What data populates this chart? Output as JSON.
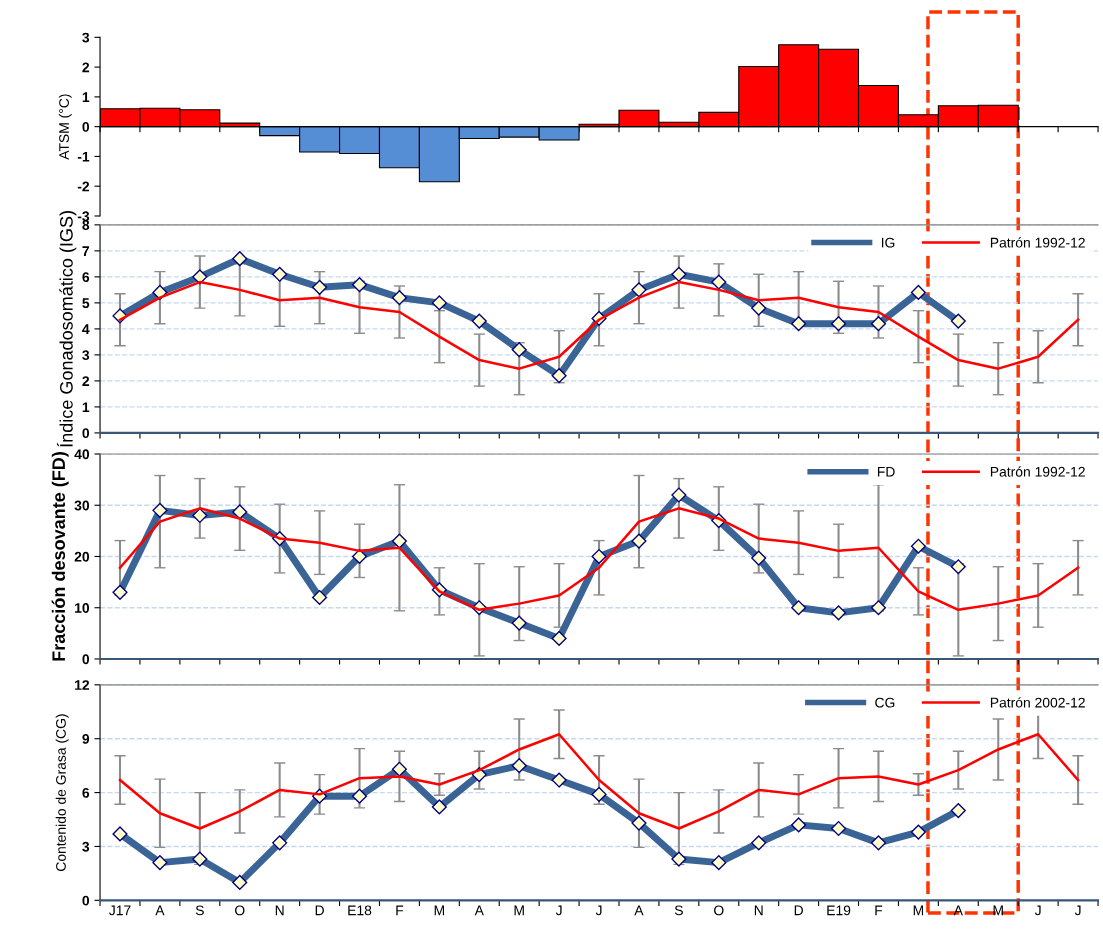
{
  "chart_data": [
    {
      "type": "bar",
      "ylabel": "ATSM (°C)",
      "categories": [
        null,
        null,
        null,
        null,
        null,
        null,
        null,
        null,
        null,
        null,
        null,
        null,
        null,
        null,
        null,
        null,
        null,
        null,
        null,
        null,
        null,
        null,
        null,
        null,
        null
      ],
      "values": [
        0.6,
        0.62,
        0.57,
        0.12,
        -0.3,
        -0.85,
        -0.9,
        -1.38,
        -1.85,
        -0.4,
        -0.35,
        -0.45,
        0.08,
        0.55,
        0.15,
        0.48,
        2.02,
        2.75,
        2.6,
        1.38,
        0.4,
        0.7,
        0.72,
        null,
        null
      ],
      "colors": [
        "#ff0000",
        "#ff0000",
        "#ff0000",
        "#ff0000",
        "#558ed5",
        "#558ed5",
        "#558ed5",
        "#558ed5",
        "#558ed5",
        "#558ed5",
        "#558ed5",
        "#558ed5",
        "#ff0000",
        "#ff0000",
        "#ff0000",
        "#ff0000",
        "#ff0000",
        "#ff0000",
        "#ff0000",
        "#ff0000",
        "#ff0000",
        "#ff0000",
        "#ff0000",
        "#ff0000",
        "#ff0000"
      ],
      "ylim": [
        -3,
        3
      ],
      "yticks": [
        -3,
        -2,
        -1,
        0,
        1,
        2,
        3
      ],
      "tick_labels": "y"
    },
    {
      "type": "line",
      "ylabel": "Índice Gonadosomático (IGS)",
      "categories": [
        null,
        null,
        null,
        null,
        null,
        null,
        null,
        null,
        null,
        null,
        null,
        null,
        null,
        null,
        null,
        null,
        null,
        null,
        null,
        null,
        null,
        null,
        null,
        null,
        null
      ],
      "series": [
        {
          "name": "IG",
          "color": "#3b6496",
          "marker": "diamond",
          "values": [
            4.5,
            5.4,
            6.0,
            6.7,
            6.1,
            5.6,
            5.7,
            5.2,
            5.0,
            4.3,
            3.2,
            2.2,
            4.4,
            5.5,
            6.1,
            5.8,
            4.8,
            4.2,
            4.2,
            4.2,
            5.4,
            4.3,
            null,
            null,
            null
          ]
        },
        {
          "name": "Patrón 1992-12",
          "color": "#ff0000",
          "marker": "none",
          "values": [
            4.35,
            5.2,
            5.8,
            5.5,
            5.1,
            5.2,
            4.83,
            4.65,
            3.7,
            2.8,
            2.47,
            2.93,
            4.35,
            5.2,
            5.8,
            5.5,
            5.1,
            5.2,
            4.83,
            4.65,
            3.7,
            2.8,
            2.47,
            2.93,
            4.35
          ],
          "errors": [
            1.0,
            1.0,
            1.0,
            1.0,
            1.0,
            1.0,
            1.0,
            1.0,
            1.0,
            1.0,
            1.0,
            1.0,
            1.0,
            1.0,
            1.0,
            1.0,
            1.0,
            1.0,
            1.0,
            1.0,
            1.0,
            1.0,
            1.0,
            1.0,
            1.0
          ]
        }
      ],
      "ylim": [
        0,
        8
      ],
      "yticks": [
        0,
        1,
        2,
        3,
        4,
        5,
        6,
        7,
        8
      ],
      "grid": "y",
      "legend": "top right",
      "tick_labels": "y"
    },
    {
      "type": "line",
      "ylabel": "Fracción desovante (FD)",
      "categories": [
        null,
        null,
        null,
        null,
        null,
        null,
        null,
        null,
        null,
        null,
        null,
        null,
        null,
        null,
        null,
        null,
        null,
        null,
        null,
        null,
        null,
        null,
        null,
        null,
        null
      ],
      "series": [
        {
          "name": "FD",
          "color": "#3b6496",
          "marker": "diamond",
          "values": [
            13,
            29,
            28,
            28.7,
            23.5,
            12,
            20,
            23,
            13.5,
            10,
            7,
            4,
            20,
            23,
            32,
            27,
            19.7,
            10,
            9,
            10,
            22,
            18,
            null,
            null,
            null
          ]
        },
        {
          "name": "Patrón 1992-12",
          "color": "#ff0000",
          "marker": "none",
          "values": [
            17.8,
            26.8,
            29.4,
            27.4,
            23.5,
            22.7,
            21.1,
            21.7,
            13.2,
            9.6,
            10.8,
            12.4,
            17.8,
            26.8,
            29.4,
            27.4,
            23.5,
            22.7,
            21.1,
            21.7,
            13.2,
            9.6,
            10.8,
            12.4,
            17.8
          ],
          "errors": [
            5.3,
            9,
            5.8,
            6.2,
            6.7,
            6.2,
            5.2,
            12.3,
            4.6,
            9,
            7.2,
            6.2,
            5.3,
            9,
            5.8,
            6.2,
            6.7,
            6.2,
            5.2,
            12.3,
            4.6,
            9,
            7.2,
            6.2,
            5.3
          ]
        }
      ],
      "ylim": [
        0,
        40
      ],
      "yticks": [
        0,
        10,
        20,
        30,
        40
      ],
      "grid": "y",
      "legend": "top right",
      "tick_labels": "y"
    },
    {
      "type": "line",
      "ylabel": "Contenido de Grasa (CG)",
      "categories": [
        "J17",
        "A",
        "S",
        "O",
        "N",
        "D",
        "E18",
        "F",
        "M",
        "A",
        "M",
        "J",
        "J",
        "A",
        "S",
        "O",
        "N",
        "D",
        "E19",
        "F",
        "M",
        "A",
        "M",
        "J",
        "J"
      ],
      "series": [
        {
          "name": "CG",
          "color": "#3b6496",
          "marker": "diamond",
          "values": [
            3.7,
            2.1,
            2.3,
            1.0,
            3.2,
            5.8,
            5.8,
            7.3,
            5.2,
            7.0,
            7.5,
            6.7,
            5.9,
            4.3,
            2.3,
            2.1,
            3.2,
            4.2,
            4.0,
            3.2,
            3.8,
            5.0,
            null,
            null,
            null
          ]
        },
        {
          "name": "Patrón 2002-12",
          "color": "#ff0000",
          "marker": "none",
          "values": [
            6.7,
            4.85,
            4.0,
            4.95,
            6.15,
            5.9,
            6.8,
            6.9,
            6.45,
            7.25,
            8.4,
            9.25,
            6.7,
            4.85,
            4.0,
            4.95,
            6.15,
            5.9,
            6.8,
            6.9,
            6.45,
            7.25,
            8.4,
            9.25,
            6.7
          ],
          "errors": [
            1.35,
            1.9,
            2.0,
            1.2,
            1.5,
            1.1,
            1.65,
            1.4,
            0.6,
            1.05,
            1.7,
            1.35,
            1.35,
            1.9,
            2.0,
            1.2,
            1.5,
            1.1,
            1.65,
            1.4,
            0.6,
            1.05,
            1.7,
            1.35,
            1.35
          ]
        }
      ],
      "ylim": [
        0,
        12
      ],
      "yticks": [
        0,
        3,
        6,
        9,
        12
      ],
      "grid": "y",
      "legend": "top right"
    }
  ]
}
